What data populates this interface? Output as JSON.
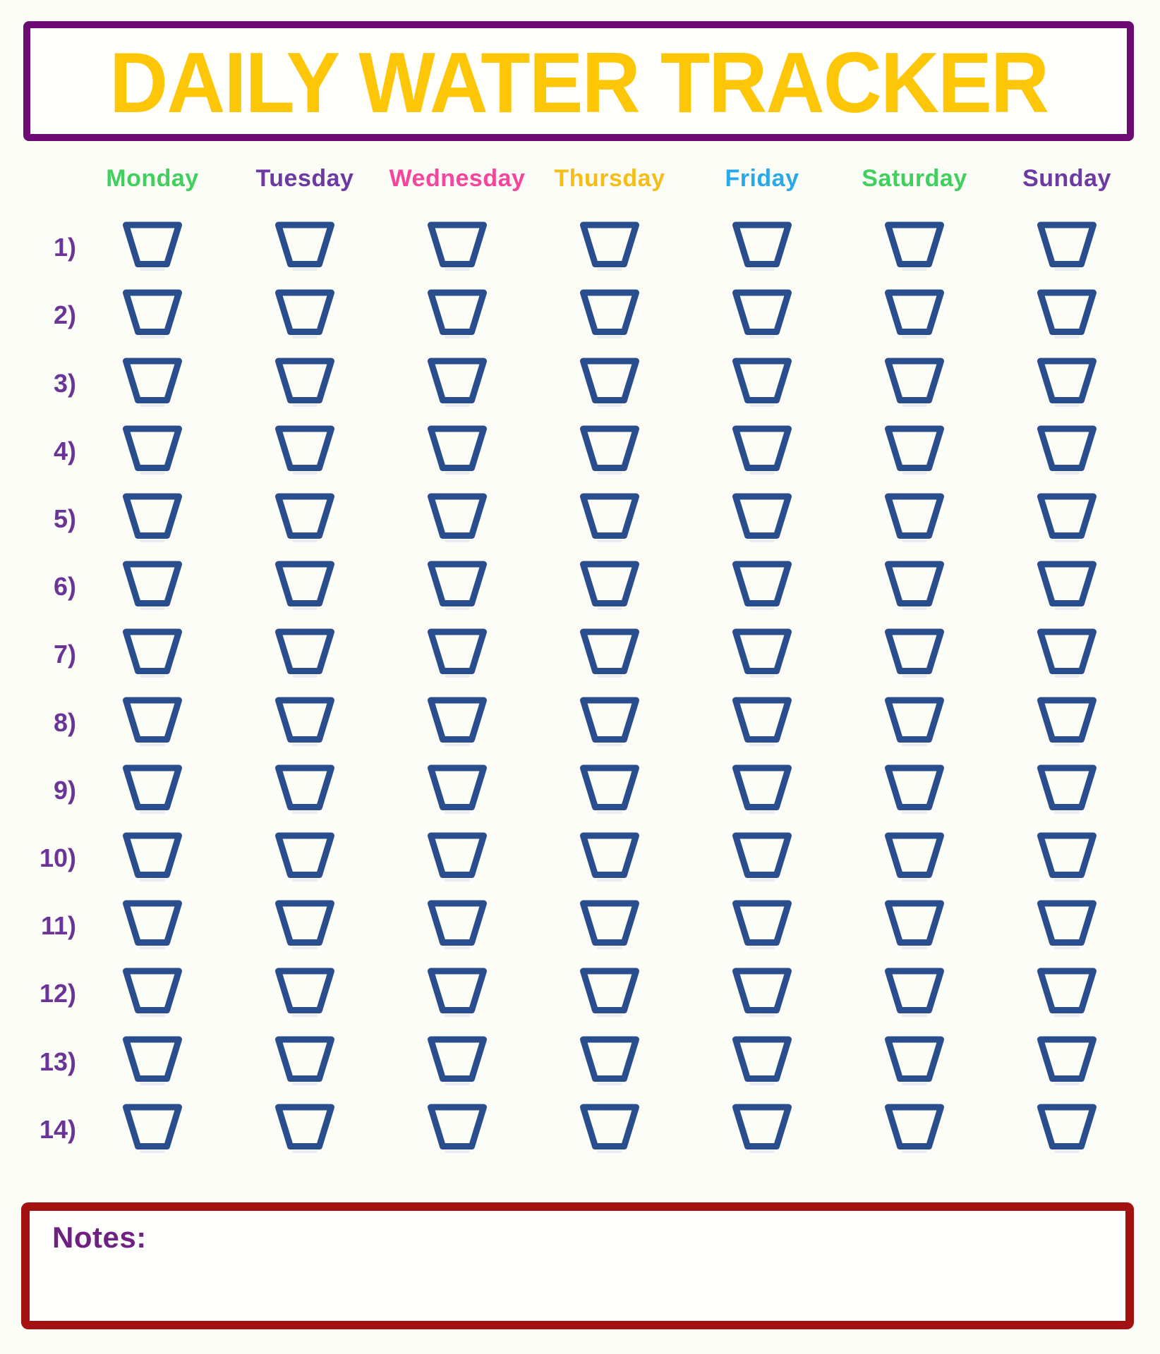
{
  "title": {
    "text": "DAILY WATER TRACKER",
    "color": "#fdc708",
    "border_color": "#6e0a73"
  },
  "days": [
    {
      "label": "Monday",
      "color": "#41d05e"
    },
    {
      "label": "Tuesday",
      "color": "#6b3aa2"
    },
    {
      "label": "Wednesday",
      "color": "#f8449b"
    },
    {
      "label": "Thursday",
      "color": "#f5bd18"
    },
    {
      "label": "Friday",
      "color": "#29a9e8"
    },
    {
      "label": "Saturday",
      "color": "#41d05e"
    },
    {
      "label": "Sunday",
      "color": "#6b3aa2"
    }
  ],
  "rows": [
    {
      "label": "1)"
    },
    {
      "label": "2)"
    },
    {
      "label": "3)"
    },
    {
      "label": "4)"
    },
    {
      "label": "5)"
    },
    {
      "label": "6)"
    },
    {
      "label": "7)"
    },
    {
      "label": "8)"
    },
    {
      "label": "9)"
    },
    {
      "label": "10)"
    },
    {
      "label": "11)"
    },
    {
      "label": "12)"
    },
    {
      "label": "13)"
    },
    {
      "label": "14)"
    }
  ],
  "row_label_color": "#6a3597",
  "cups_per_row": 7,
  "cup": {
    "stroke_color": "#2a4d8e",
    "shadow_color": "#e9edf3"
  },
  "notes": {
    "label": "Notes:",
    "label_color": "#6e2181",
    "border_color": "#a31111"
  }
}
